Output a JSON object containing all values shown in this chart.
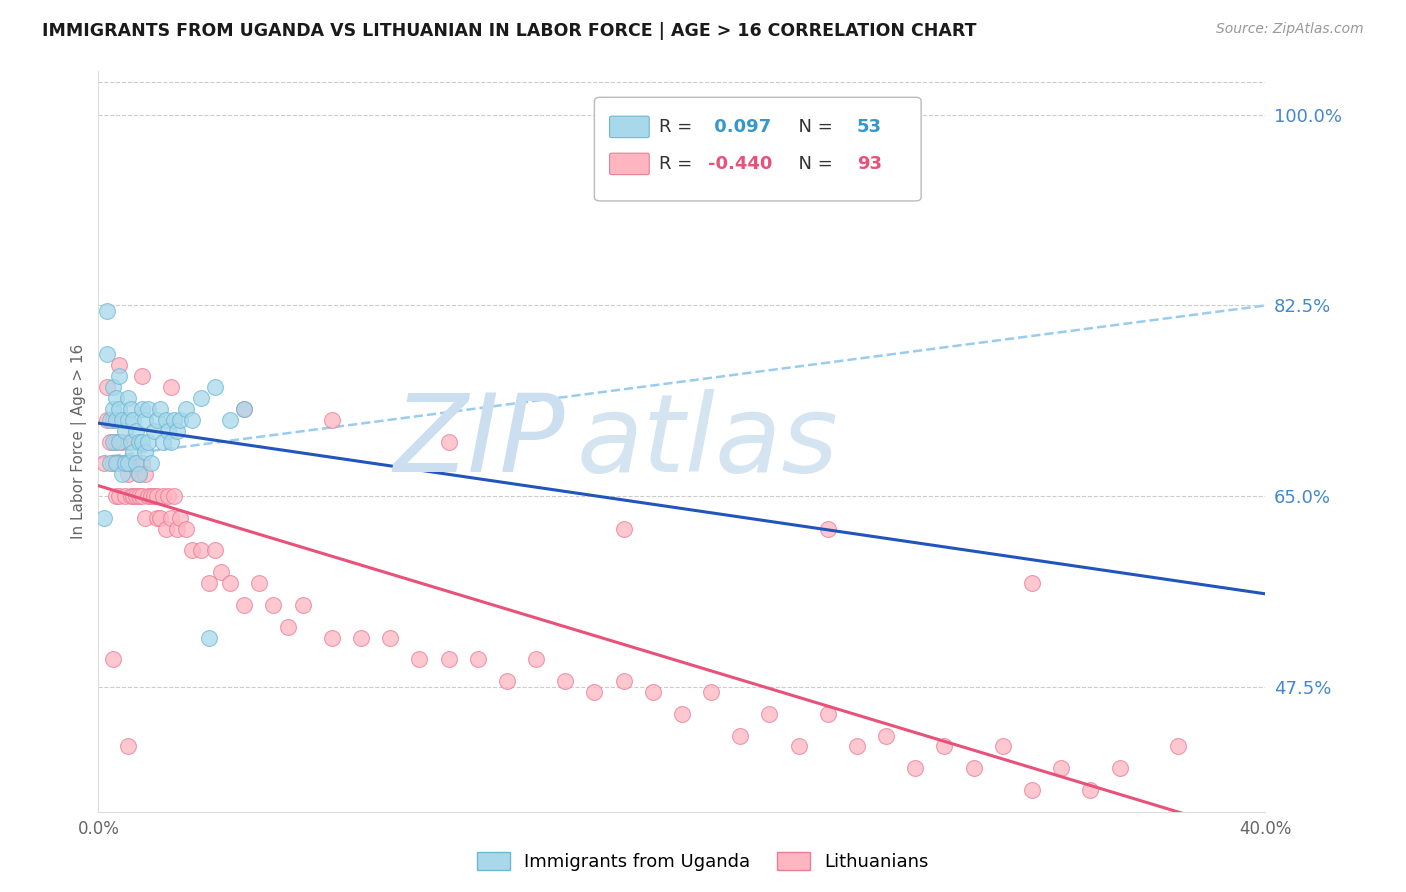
{
  "title": "IMMIGRANTS FROM UGANDA VS LITHUANIAN IN LABOR FORCE | AGE > 16 CORRELATION CHART",
  "source_text": "Source: ZipAtlas.com",
  "ylabel": "In Labor Force | Age > 16",
  "xlim": [
    0.0,
    0.4
  ],
  "ylim": [
    0.36,
    1.04
  ],
  "xticks": [
    0.0,
    0.1,
    0.2,
    0.3,
    0.4
  ],
  "xtick_labels": [
    "0.0%",
    "",
    "",
    "",
    "40.0%"
  ],
  "ytick_labels_right": [
    "100.0%",
    "82.5%",
    "65.0%",
    "47.5%"
  ],
  "ytick_vals_right": [
    1.0,
    0.825,
    0.65,
    0.475
  ],
  "gridline_color": "#cccccc",
  "background_color": "#ffffff",
  "uganda_color": "#a8d8ea",
  "uganda_edge_color": "#6cb8d4",
  "lithuanian_color": "#ffb6c1",
  "lithuanian_edge_color": "#e87d96",
  "uganda_R": 0.097,
  "uganda_N": 53,
  "lithuanian_R": -0.44,
  "lithuanian_N": 93,
  "uganda_line_color": "#2255bb",
  "lithuanian_line_color": "#e8527a",
  "dashed_line_color": "#99ccee",
  "watermark_zip": "ZIP",
  "watermark_atlas": "atlas",
  "watermark_color": "#ccdff0",
  "legend_label_uganda": "Immigrants from Uganda",
  "legend_label_lithuanian": "Lithuanians",
  "uganda_scatter_x": [
    0.002,
    0.003,
    0.003,
    0.004,
    0.004,
    0.005,
    0.005,
    0.005,
    0.006,
    0.006,
    0.006,
    0.007,
    0.007,
    0.007,
    0.008,
    0.008,
    0.009,
    0.009,
    0.01,
    0.01,
    0.01,
    0.011,
    0.011,
    0.012,
    0.012,
    0.013,
    0.013,
    0.014,
    0.014,
    0.015,
    0.015,
    0.016,
    0.016,
    0.017,
    0.017,
    0.018,
    0.019,
    0.02,
    0.021,
    0.022,
    0.023,
    0.024,
    0.025,
    0.026,
    0.027,
    0.028,
    0.03,
    0.032,
    0.035,
    0.038,
    0.04,
    0.045,
    0.05
  ],
  "uganda_scatter_y": [
    0.63,
    0.78,
    0.82,
    0.68,
    0.72,
    0.7,
    0.73,
    0.75,
    0.68,
    0.72,
    0.74,
    0.7,
    0.73,
    0.76,
    0.67,
    0.72,
    0.68,
    0.71,
    0.68,
    0.72,
    0.74,
    0.7,
    0.73,
    0.69,
    0.72,
    0.68,
    0.71,
    0.67,
    0.7,
    0.7,
    0.73,
    0.69,
    0.72,
    0.7,
    0.73,
    0.68,
    0.71,
    0.72,
    0.73,
    0.7,
    0.72,
    0.71,
    0.7,
    0.72,
    0.71,
    0.72,
    0.73,
    0.72,
    0.74,
    0.52,
    0.75,
    0.72,
    0.73
  ],
  "lithuanian_scatter_x": [
    0.002,
    0.003,
    0.004,
    0.005,
    0.005,
    0.006,
    0.006,
    0.007,
    0.007,
    0.008,
    0.008,
    0.009,
    0.009,
    0.01,
    0.01,
    0.011,
    0.011,
    0.012,
    0.012,
    0.013,
    0.013,
    0.014,
    0.014,
    0.015,
    0.015,
    0.016,
    0.016,
    0.017,
    0.018,
    0.019,
    0.02,
    0.02,
    0.021,
    0.022,
    0.023,
    0.024,
    0.025,
    0.026,
    0.027,
    0.028,
    0.03,
    0.032,
    0.035,
    0.038,
    0.04,
    0.042,
    0.045,
    0.05,
    0.055,
    0.06,
    0.065,
    0.07,
    0.08,
    0.09,
    0.1,
    0.11,
    0.12,
    0.13,
    0.14,
    0.15,
    0.16,
    0.17,
    0.18,
    0.19,
    0.2,
    0.21,
    0.22,
    0.23,
    0.24,
    0.25,
    0.26,
    0.27,
    0.28,
    0.29,
    0.3,
    0.31,
    0.32,
    0.33,
    0.34,
    0.35,
    0.003,
    0.007,
    0.015,
    0.025,
    0.05,
    0.08,
    0.12,
    0.18,
    0.25,
    0.32,
    0.005,
    0.01,
    0.37
  ],
  "lithuanian_scatter_y": [
    0.68,
    0.72,
    0.7,
    0.68,
    0.72,
    0.65,
    0.7,
    0.65,
    0.68,
    0.68,
    0.7,
    0.65,
    0.68,
    0.67,
    0.7,
    0.65,
    0.68,
    0.65,
    0.68,
    0.65,
    0.68,
    0.65,
    0.67,
    0.65,
    0.68,
    0.63,
    0.67,
    0.65,
    0.65,
    0.65,
    0.63,
    0.65,
    0.63,
    0.65,
    0.62,
    0.65,
    0.63,
    0.65,
    0.62,
    0.63,
    0.62,
    0.6,
    0.6,
    0.57,
    0.6,
    0.58,
    0.57,
    0.55,
    0.57,
    0.55,
    0.53,
    0.55,
    0.52,
    0.52,
    0.52,
    0.5,
    0.5,
    0.5,
    0.48,
    0.5,
    0.48,
    0.47,
    0.48,
    0.47,
    0.45,
    0.47,
    0.43,
    0.45,
    0.42,
    0.45,
    0.42,
    0.43,
    0.4,
    0.42,
    0.4,
    0.42,
    0.38,
    0.4,
    0.38,
    0.4,
    0.75,
    0.77,
    0.76,
    0.75,
    0.73,
    0.72,
    0.7,
    0.62,
    0.62,
    0.57,
    0.5,
    0.42,
    0.42
  ]
}
